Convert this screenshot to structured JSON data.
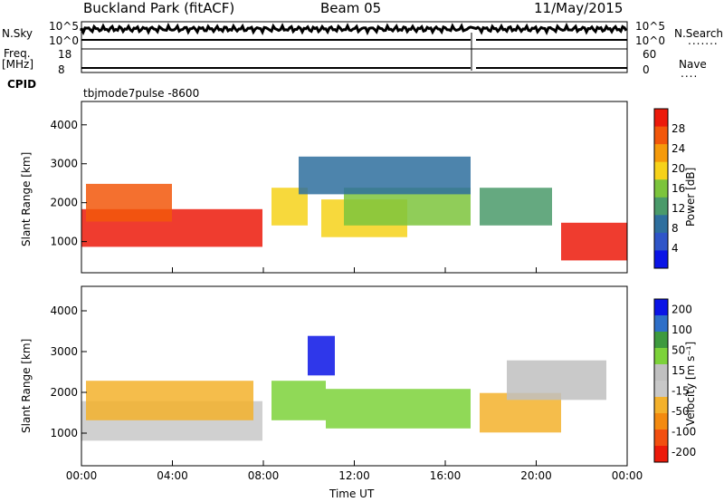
{
  "header": {
    "site": "Buckland Park (fitACF)",
    "beam": "Beam 05",
    "date": "11/May/2015"
  },
  "nsky_panel": {
    "left_label": "N.Sky",
    "right_label": "N.Search",
    "left_ticks": [
      "10^5",
      "10^0"
    ],
    "right_ticks": [
      "10^5",
      "10^0"
    ],
    "right_dots": "......."
  },
  "freq_panel": {
    "left_label_1": "Freq.",
    "left_label_2": "[MHz]",
    "left_ticks": [
      "18",
      "8"
    ],
    "right_label": "Nave",
    "right_ticks": [
      "60",
      "0"
    ],
    "right_dots": "...."
  },
  "cpid": {
    "label": "CPID",
    "value": "tbjmode7pulse -8600"
  },
  "colors": {
    "power_scale": [
      "#0a14e6",
      "#2f55c8",
      "#2e6f9e",
      "#4a9a6a",
      "#7cc43c",
      "#f6d21a",
      "#f59a0a",
      "#f2570a",
      "#ec1a0a"
    ],
    "velocity_scale": [
      "#ec1a0a",
      "#f24f10",
      "#f38a10",
      "#f3b12c",
      "#c8c8c8",
      "#c0c0c0",
      "#7cd23a",
      "#3e9a3e",
      "#2e6fc8",
      "#0a14e6"
    ]
  },
  "chart_data": [
    {
      "type": "heatmap",
      "title": "",
      "xlabel": "",
      "ylabel": "Slant Range [km]",
      "x_ticks": [
        "00:00",
        "04:00",
        "08:00",
        "12:00",
        "16:00",
        "20:00",
        "00:00"
      ],
      "y_ticks": [
        "1000",
        "2000",
        "3000",
        "4000"
      ],
      "ylim": [
        200,
        4600
      ],
      "colorbar_label": "Power [dB]",
      "colorbar_ticks": [
        "4",
        "8",
        "12",
        "16",
        "20",
        "24",
        "28"
      ],
      "colorbar_range": [
        0,
        32
      ]
    },
    {
      "type": "heatmap",
      "title": "",
      "xlabel": "Time UT",
      "ylabel": "Slant Range [km]",
      "x_ticks": [
        "00:00",
        "04:00",
        "08:00",
        "12:00",
        "16:00",
        "20:00",
        "00:00"
      ],
      "y_ticks": [
        "1000",
        "2000",
        "3000",
        "4000"
      ],
      "ylim": [
        200,
        4600
      ],
      "colorbar_label": "Velocity [m s⁻¹]",
      "colorbar_ticks": [
        "200",
        "100",
        "50",
        "15",
        "-15",
        "-50",
        "-100",
        "-200"
      ]
    }
  ]
}
